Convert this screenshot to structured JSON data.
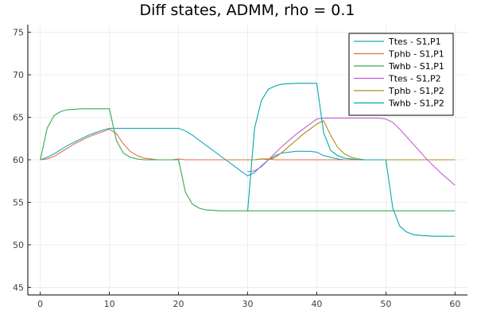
{
  "chart_data": {
    "type": "line",
    "title": "Diff states, ADMM, rho = 0.1",
    "xlabel": "",
    "ylabel": "",
    "xlim": [
      -1.8,
      61.8
    ],
    "ylim": [
      44.1,
      75.9
    ],
    "x_ticks": [
      0,
      10,
      20,
      30,
      40,
      50,
      60
    ],
    "y_ticks": [
      45,
      50,
      55,
      60,
      65,
      70,
      75
    ],
    "grid": true,
    "legend_position": "top-right",
    "series": [
      {
        "name": "Ttes - S1,P1",
        "color": "#1aa8c4",
        "x": [
          0,
          1,
          2,
          3,
          4,
          5,
          6,
          7,
          8,
          9,
          10,
          11,
          12,
          13,
          14,
          15,
          16,
          17,
          18,
          19,
          20,
          21,
          22,
          23,
          24,
          25,
          26,
          27,
          28,
          29,
          30,
          31,
          32,
          33,
          34,
          35,
          36,
          37,
          38,
          39,
          40,
          41,
          42,
          43,
          44,
          45,
          46,
          47,
          48,
          49,
          50,
          51,
          52,
          53,
          54,
          55,
          56,
          57,
          58,
          59,
          60
        ],
        "values": [
          60,
          60.3,
          60.7,
          61.2,
          61.7,
          62.1,
          62.5,
          62.9,
          63.2,
          63.5,
          63.7,
          63.7,
          63.7,
          63.7,
          63.7,
          63.7,
          63.7,
          63.7,
          63.7,
          63.7,
          63.7,
          63.4,
          62.9,
          62.3,
          61.7,
          61.1,
          60.5,
          59.9,
          59.3,
          58.7,
          58.1,
          58.5,
          59.3,
          60.0,
          60.5,
          60.8,
          60.9,
          61.0,
          61.0,
          61.0,
          60.9,
          60.5,
          60.3,
          60.1,
          60.0,
          60.0,
          60.0,
          60.0,
          60.0,
          60.0,
          60.0,
          60.0,
          60.0,
          60.0,
          60.0,
          60.0,
          60.0,
          60.0,
          60.0,
          60.0,
          60.0
        ]
      },
      {
        "name": "Tphb - S1,P1",
        "color": "#e26f46",
        "x": [
          0,
          1,
          2,
          3,
          4,
          5,
          6,
          7,
          8,
          9,
          10,
          11,
          12,
          13,
          14,
          15,
          16,
          17,
          18,
          19,
          20,
          21,
          22,
          23,
          24,
          25,
          26,
          27,
          28,
          29,
          30,
          31,
          32,
          33,
          34,
          35,
          36,
          37,
          38,
          39,
          40,
          41,
          42,
          43,
          44,
          45,
          46,
          47,
          48,
          49,
          50,
          51,
          52,
          53,
          54,
          55,
          56,
          57,
          58,
          59,
          60
        ],
        "values": [
          60,
          60.1,
          60.4,
          60.9,
          61.4,
          61.9,
          62.3,
          62.7,
          63.0,
          63.3,
          63.6,
          63.1,
          61.9,
          61.0,
          60.5,
          60.2,
          60.1,
          60.0,
          60.0,
          60.0,
          60.1,
          60.0,
          60.0,
          60.0,
          60.0,
          60.0,
          60.0,
          60.0,
          60.0,
          60.0,
          60.0,
          60.0,
          60.1,
          60.1,
          60.0,
          60.0,
          60.0,
          60.0,
          60.0,
          60.0,
          60.0,
          60.0,
          60.0,
          60.0,
          60.0,
          60.0,
          60.0,
          60.0,
          60.0,
          60.0,
          60.0,
          60.0,
          60.0,
          60.0,
          60.0,
          60.0,
          60.0,
          60.0,
          60.0,
          60.0,
          60.0
        ]
      },
      {
        "name": "Twhb - S1,P1",
        "color": "#3ba74e",
        "x": [
          0,
          1,
          2,
          3,
          4,
          5,
          6,
          7,
          8,
          9,
          10,
          11,
          12,
          13,
          14,
          15,
          16,
          17,
          18,
          19,
          20,
          21,
          22,
          23,
          24,
          25,
          26,
          27,
          28,
          29,
          30,
          31,
          32,
          33,
          34,
          35,
          36,
          37,
          38,
          39,
          40,
          41,
          42,
          43,
          44,
          45,
          46,
          47,
          48,
          49,
          50,
          51,
          52,
          53,
          54,
          55,
          56,
          57,
          58,
          59,
          60
        ],
        "values": [
          60,
          63.7,
          65.2,
          65.7,
          65.9,
          65.95,
          66.0,
          66.0,
          66.0,
          66.0,
          66.0,
          62.3,
          60.8,
          60.3,
          60.1,
          60.0,
          60.0,
          60.0,
          60.0,
          60.0,
          60.0,
          56.2,
          54.8,
          54.3,
          54.1,
          54.05,
          54.0,
          54.0,
          54.0,
          54.0,
          54.0,
          54.0,
          54.0,
          54.0,
          54.0,
          54.0,
          54.0,
          54.0,
          54.0,
          54.0,
          54.0,
          54.0,
          54.0,
          54.0,
          54.0,
          54.0,
          54.0,
          54.0,
          54.0,
          54.0,
          54.0,
          54.0,
          54.0,
          54.0,
          54.0,
          54.0,
          54.0,
          54.0,
          54.0,
          54.0,
          54.0
        ]
      },
      {
        "name": "Ttes - S1,P2",
        "color": "#c45fd3",
        "x": [
          30,
          31,
          32,
          33,
          34,
          35,
          36,
          37,
          38,
          39,
          40,
          41,
          42,
          43,
          44,
          45,
          46,
          47,
          48,
          49,
          50,
          51,
          52,
          53,
          54,
          55,
          56,
          57,
          58,
          59,
          60
        ],
        "values": [
          58.6,
          58.7,
          59.2,
          60.0,
          60.8,
          61.6,
          62.3,
          63.0,
          63.6,
          64.2,
          64.8,
          64.9,
          64.9,
          64.9,
          64.9,
          64.9,
          64.9,
          64.9,
          64.9,
          64.9,
          64.8,
          64.4,
          63.6,
          62.7,
          61.8,
          60.9,
          60.0,
          59.2,
          58.4,
          57.7,
          57.0
        ]
      },
      {
        "name": "Tphb - S1,P2",
        "color": "#ac8d18",
        "x": [
          30,
          31,
          32,
          33,
          34,
          35,
          36,
          37,
          38,
          39,
          40,
          41,
          42,
          43,
          44,
          45,
          46,
          47,
          48,
          49,
          50,
          51,
          52,
          53,
          54,
          55,
          56,
          57,
          58,
          59,
          60
        ],
        "values": [
          60.0,
          60.0,
          60.1,
          60.0,
          60.3,
          60.9,
          61.6,
          62.3,
          63.0,
          63.6,
          64.2,
          64.6,
          62.9,
          61.5,
          60.7,
          60.3,
          60.1,
          60.0,
          60.0,
          60.0,
          60.0,
          60.0,
          60.0,
          60.0,
          60.0,
          60.0,
          60.0,
          60.0,
          60.0,
          60.0,
          60.0
        ]
      },
      {
        "name": "Twhb - S1,P2",
        "color": "#00a9ad",
        "x": [
          30,
          31,
          32,
          33,
          34,
          35,
          36,
          37,
          38,
          39,
          40,
          41,
          42,
          43,
          44,
          45,
          46,
          47,
          48,
          49,
          50,
          51,
          52,
          53,
          54,
          55,
          56,
          57,
          58,
          59,
          60
        ],
        "values": [
          54.0,
          63.7,
          67.0,
          68.3,
          68.7,
          68.9,
          68.95,
          69.0,
          69.0,
          69.0,
          69.0,
          63.2,
          61.1,
          60.5,
          60.2,
          60.1,
          60.0,
          60.0,
          60.0,
          60.0,
          60.0,
          54.3,
          52.2,
          51.5,
          51.2,
          51.1,
          51.05,
          51.0,
          51.0,
          51.0,
          51.0
        ]
      }
    ]
  }
}
